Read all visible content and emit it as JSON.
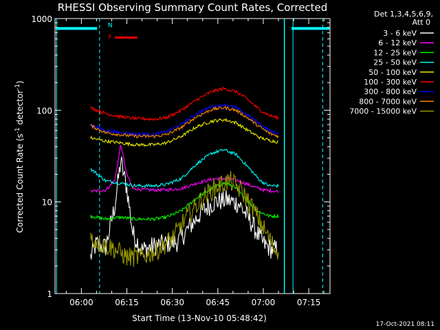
{
  "chart_data": {
    "type": "line",
    "title": "RHESSI Observing Summary Count Rates, Corrected",
    "xlabel": "Start Time (13-Nov-10 05:48:42)",
    "ylabel": "Corrected Count Rate (s⁻¹ detector⁻¹)",
    "ylabel_main": "Corrected Count Rate (s",
    "ylabel_sup1": "-1",
    "ylabel_mid": " detector",
    "ylabel_sup2": "-1",
    "ylabel_end": ")",
    "yscale": "log",
    "ylim": [
      1,
      1000
    ],
    "xlim_minutes": [
      -8.7,
      82.0
    ],
    "xticks": [
      {
        "label": "06:00",
        "minutes": 0
      },
      {
        "label": "06:15",
        "minutes": 15
      },
      {
        "label": "06:30",
        "minutes": 30
      },
      {
        "label": "06:45",
        "minutes": 45
      },
      {
        "label": "07:00",
        "minutes": 60
      },
      {
        "label": "07:15",
        "minutes": 75
      }
    ],
    "yticks": [
      {
        "label": "1",
        "value": 1
      },
      {
        "label": "10",
        "value": 10
      },
      {
        "label": "100",
        "value": 100
      },
      {
        "label": "1000",
        "value": 1000
      }
    ],
    "legend_header": [
      "Det 1,3,4,5,6,9,",
      "Att 0"
    ],
    "legend_placement": "right",
    "series": [
      {
        "name": "3 - 6 keV",
        "color": "#ffffff",
        "points": [
          [
            3,
            2.5
          ],
          [
            5,
            3.5
          ],
          [
            8,
            3.2
          ],
          [
            11,
            9
          ],
          [
            13,
            28
          ],
          [
            15,
            14
          ],
          [
            17,
            4.5
          ],
          [
            20,
            3
          ],
          [
            24,
            3.3
          ],
          [
            28,
            3.5
          ],
          [
            32,
            3.7
          ],
          [
            36,
            5.5
          ],
          [
            40,
            8
          ],
          [
            44,
            10
          ],
          [
            48,
            10.5
          ],
          [
            52,
            9.5
          ],
          [
            56,
            6
          ],
          [
            60,
            3.5
          ],
          [
            63,
            3
          ],
          [
            65,
            3.1
          ]
        ]
      },
      {
        "name": "6 - 12 keV",
        "color": "#ff00ff",
        "points": [
          [
            3,
            13
          ],
          [
            8,
            13.5
          ],
          [
            11,
            17
          ],
          [
            13,
            42
          ],
          [
            15,
            20
          ],
          [
            17,
            14
          ],
          [
            22,
            13.5
          ],
          [
            28,
            13.5
          ],
          [
            33,
            14
          ],
          [
            38,
            16
          ],
          [
            44,
            18
          ],
          [
            48,
            18
          ],
          [
            52,
            17
          ],
          [
            56,
            15
          ],
          [
            60,
            13.5
          ],
          [
            65,
            13
          ]
        ]
      },
      {
        "name": "12 - 25 keV",
        "color": "#00ff00",
        "points": [
          [
            3,
            7
          ],
          [
            8,
            6.5
          ],
          [
            13,
            6.8
          ],
          [
            18,
            6.5
          ],
          [
            24,
            6.5
          ],
          [
            28,
            6.8
          ],
          [
            33,
            8
          ],
          [
            38,
            11
          ],
          [
            43,
            14
          ],
          [
            47,
            16
          ],
          [
            50,
            15
          ],
          [
            54,
            11
          ],
          [
            58,
            8
          ],
          [
            62,
            7
          ],
          [
            65,
            7
          ]
        ]
      },
      {
        "name": "25 - 50 keV",
        "color": "#00ffff",
        "points": [
          [
            3,
            23
          ],
          [
            8,
            17
          ],
          [
            13,
            16
          ],
          [
            18,
            15
          ],
          [
            24,
            15
          ],
          [
            28,
            15.5
          ],
          [
            33,
            18
          ],
          [
            38,
            26
          ],
          [
            43,
            34
          ],
          [
            47,
            37
          ],
          [
            51,
            33
          ],
          [
            55,
            24
          ],
          [
            59,
            17
          ],
          [
            62,
            15
          ],
          [
            65,
            15
          ]
        ]
      },
      {
        "name": "50 - 100 keV",
        "color": "#e8e800",
        "points": [
          [
            3,
            50
          ],
          [
            8,
            46
          ],
          [
            13,
            44
          ],
          [
            18,
            42
          ],
          [
            24,
            42
          ],
          [
            28,
            44
          ],
          [
            33,
            52
          ],
          [
            38,
            66
          ],
          [
            43,
            76
          ],
          [
            47,
            79
          ],
          [
            51,
            73
          ],
          [
            55,
            60
          ],
          [
            59,
            50
          ],
          [
            62,
            47
          ],
          [
            65,
            45
          ]
        ]
      },
      {
        "name": "100 - 300 keV",
        "color": "#ff0000",
        "points": [
          [
            3,
            107
          ],
          [
            8,
            92
          ],
          [
            13,
            85
          ],
          [
            18,
            81
          ],
          [
            24,
            80
          ],
          [
            28,
            83
          ],
          [
            33,
            100
          ],
          [
            38,
            130
          ],
          [
            43,
            160
          ],
          [
            47,
            172
          ],
          [
            51,
            160
          ],
          [
            55,
            130
          ],
          [
            59,
            100
          ],
          [
            62,
            88
          ],
          [
            65,
            82
          ]
        ]
      },
      {
        "name": "300 - 800 keV",
        "color": "#0000ff",
        "points": [
          [
            3,
            70
          ],
          [
            8,
            60
          ],
          [
            13,
            57
          ],
          [
            18,
            55
          ],
          [
            24,
            55
          ],
          [
            28,
            58
          ],
          [
            33,
            70
          ],
          [
            38,
            92
          ],
          [
            43,
            110
          ],
          [
            47,
            115
          ],
          [
            51,
            107
          ],
          [
            55,
            88
          ],
          [
            59,
            70
          ],
          [
            62,
            60
          ],
          [
            65,
            56
          ]
        ]
      },
      {
        "name": "800 - 7000 keV",
        "color": "#ff8c00",
        "points": [
          [
            3,
            68
          ],
          [
            8,
            57
          ],
          [
            13,
            54
          ],
          [
            18,
            52
          ],
          [
            24,
            52
          ],
          [
            28,
            54
          ],
          [
            33,
            65
          ],
          [
            38,
            85
          ],
          [
            43,
            102
          ],
          [
            47,
            107
          ],
          [
            51,
            100
          ],
          [
            55,
            82
          ],
          [
            59,
            65
          ],
          [
            62,
            56
          ],
          [
            65,
            52
          ]
        ]
      },
      {
        "name": "7000 - 15000 keV",
        "color": "#999900",
        "points": [
          [
            3,
            4
          ],
          [
            6,
            3.5
          ],
          [
            10,
            3.2
          ],
          [
            15,
            2.5
          ],
          [
            20,
            2.5
          ],
          [
            25,
            3
          ],
          [
            30,
            4
          ],
          [
            35,
            7
          ],
          [
            40,
            11
          ],
          [
            45,
            15
          ],
          [
            49,
            17
          ],
          [
            53,
            13
          ],
          [
            57,
            8
          ],
          [
            61,
            4.5
          ],
          [
            64,
            3
          ],
          [
            65,
            3
          ]
        ]
      }
    ],
    "attenuator_lines_minutes": [
      -8.2,
      66.9,
      67.0,
      69.8
    ],
    "dashed_lines_minutes": [
      6.0,
      79.6
    ],
    "flag_bar": {
      "start": -8.4,
      "end": 5.2,
      "end2": 69.3,
      "end3": 81.8,
      "value": 780,
      "color": "#00ffff"
    },
    "flare_bar": {
      "start": 11.0,
      "end": 18.5,
      "value": 620,
      "color": "#ff0000"
    },
    "flag_labels": [
      {
        "text": "N",
        "color": "#00ffff",
        "minutes": 9.5,
        "value": 860
      },
      {
        "text": "F",
        "color": "#ff0000",
        "minutes": 9.5,
        "value": 640
      }
    ],
    "timestamp": "17-Oct-2021 08:11"
  }
}
